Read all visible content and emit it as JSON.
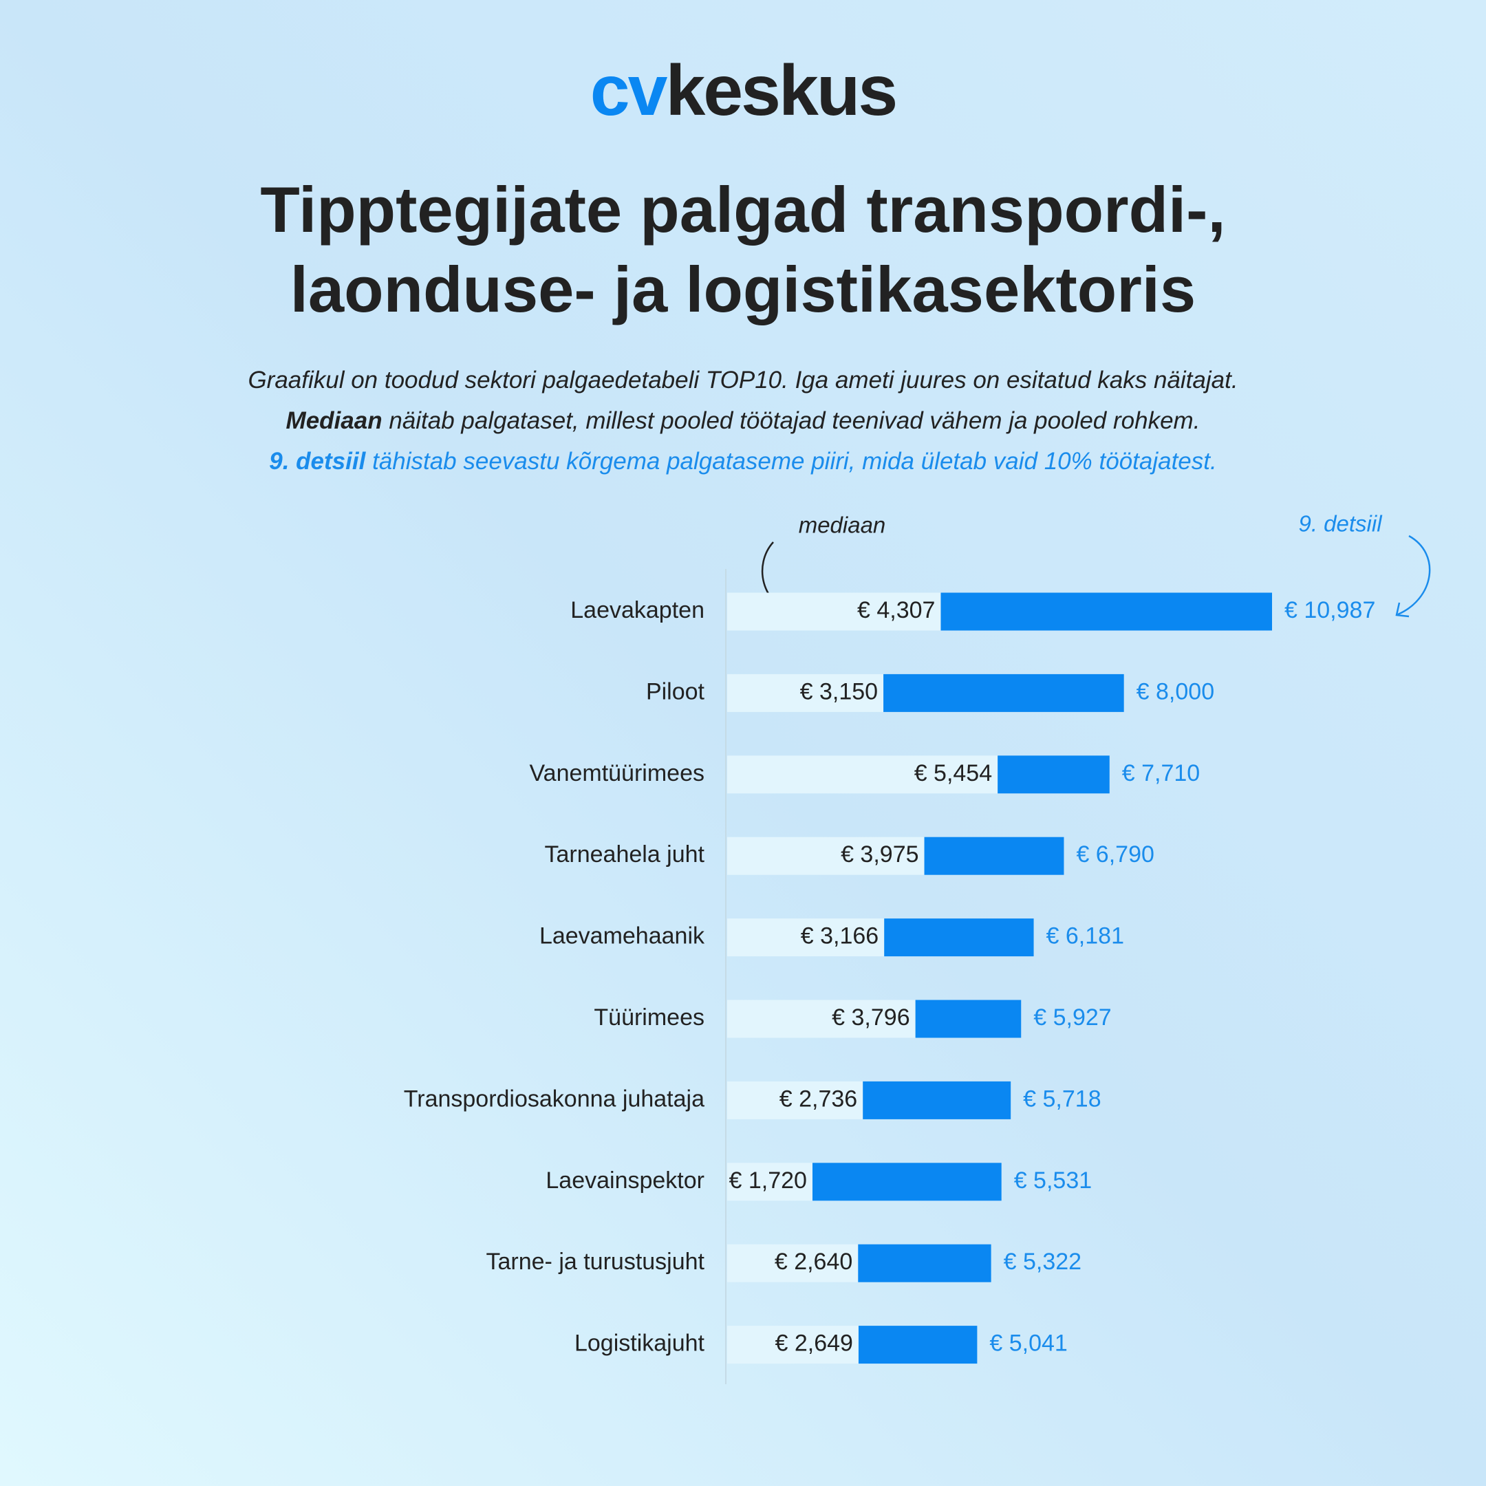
{
  "logo": {
    "accent": "cv",
    "text": "keskus"
  },
  "chart_data": {
    "type": "bar",
    "title": [
      "Tipptegijate palgad transpordi-,",
      "laonduse- ja logistikasektoris"
    ],
    "description": [
      [
        "Graafikul on toodud sektori palgaedetabeli TOP10. Iga ameti juures on esitatud kaks näitajat."
      ],
      [
        "Mediaan",
        "näitab palgataset, millest pooled töötajad teenivad vähem ja pooled rohkem."
      ],
      [
        "9. detsiil",
        "tähistab seevastu kõrgema palgataseme piiri, mida ületab vaid 10% töötajatest."
      ]
    ],
    "categories": [
      "Laevakapten",
      "Piloot",
      "Vanemtüürimees",
      "Tarneahela juht",
      "Laevamehaanik",
      "Tüürimees",
      "Transpordiosakonna juhataja",
      "Laevainspektor",
      "Tarne- ja turustusjuht",
      "Logistikajuht"
    ],
    "series": [
      {
        "name": "mediaan",
        "color": "#e2f5fd",
        "label_color": "#222222",
        "values": [
          4307,
          3150,
          5454,
          3975,
          3166,
          3796,
          2736,
          1720,
          2640,
          2649
        ],
        "value_labels": [
          "€ 4,307",
          "€ 3,150",
          "€ 5,454",
          "€ 3,975",
          "€ 3,166",
          "€ 3,796",
          "€ 2,736",
          "€ 1,720",
          "€ 2,640",
          "€ 2,649"
        ]
      },
      {
        "name": "9. detsiil",
        "color": "#0a87f2",
        "label_color": "#1a8cec",
        "values": [
          10987,
          8000,
          7710,
          6790,
          6181,
          5927,
          5718,
          5531,
          5322,
          5041
        ],
        "value_labels": [
          "€ 10,987",
          "€ 8,000",
          "€ 7,710",
          "€ 6,790",
          "€ 6,181",
          "€ 5,927",
          "€ 5,718",
          "€ 5,531",
          "€ 5,322",
          "€ 5,041"
        ]
      }
    ]
  }
}
